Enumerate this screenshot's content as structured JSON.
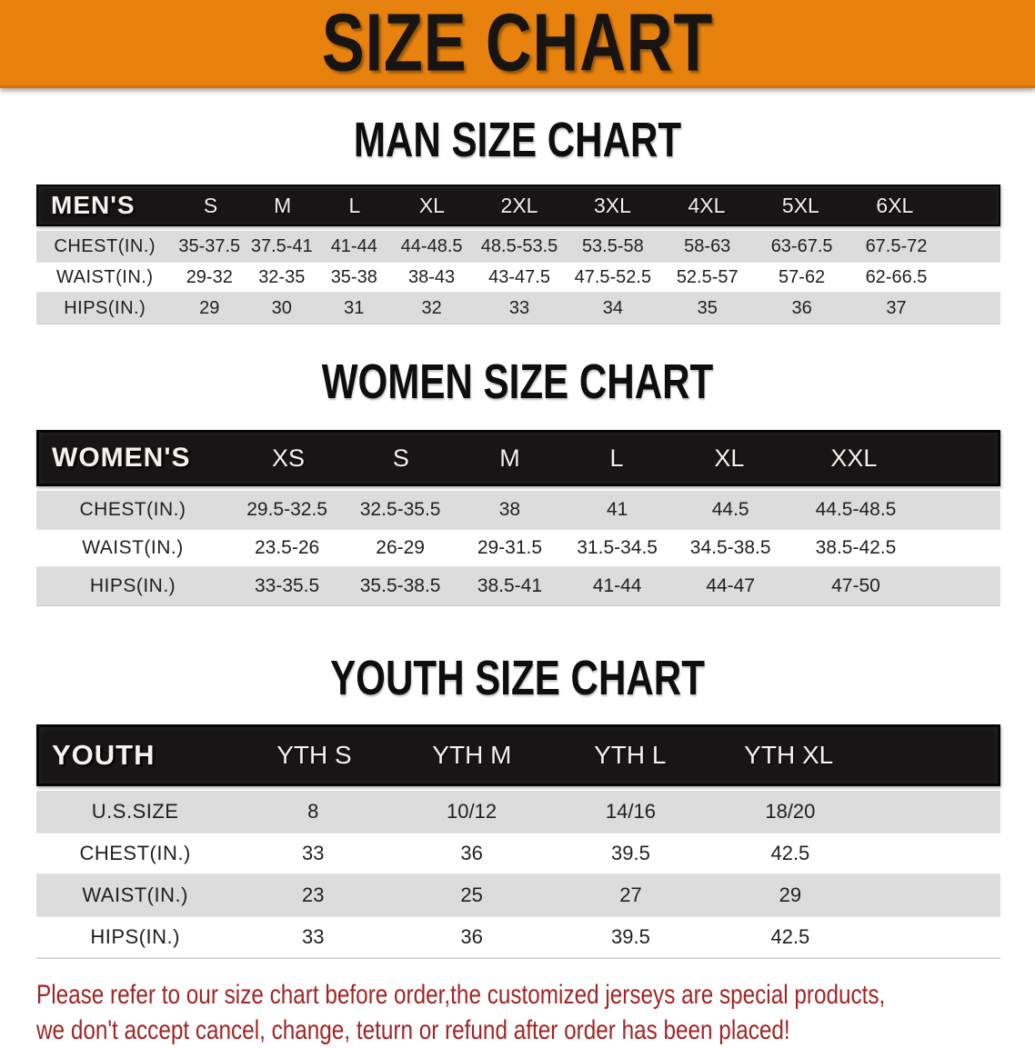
{
  "banner": {
    "title": "SIZE CHART"
  },
  "sections": {
    "men": {
      "heading": "MAN SIZE CHART",
      "table": {
        "label": "MEN'S",
        "columns": [
          "S",
          "M",
          "L",
          "XL",
          "2XL",
          "3XL",
          "4XL",
          "5XL",
          "6XL"
        ],
        "rows": [
          {
            "label": "CHEST(IN.)",
            "values": [
              "35-37.5",
              "37.5-41",
              "41-44",
              "44-48.5",
              "48.5-53.5",
              "53.5-58",
              "58-63",
              "63-67.5",
              "67.5-72"
            ]
          },
          {
            "label": "WAIST(IN.)",
            "values": [
              "29-32",
              "32-35",
              "35-38",
              "38-43",
              "43-47.5",
              "47.5-52.5",
              "52.5-57",
              "57-62",
              "62-66.5"
            ]
          },
          {
            "label": "HIPS(IN.)",
            "values": [
              "29",
              "30",
              "31",
              "32",
              "33",
              "34",
              "35",
              "36",
              "37"
            ]
          }
        ]
      }
    },
    "women": {
      "heading": "WOMEN SIZE CHART",
      "table": {
        "label": "WOMEN'S",
        "columns": [
          "XS",
          "S",
          "M",
          "L",
          "XL",
          "XXL"
        ],
        "rows": [
          {
            "label": "CHEST(IN.)",
            "values": [
              "29.5-32.5",
              "32.5-35.5",
              "38",
              "41",
              "44.5",
              "44.5-48.5"
            ]
          },
          {
            "label": "WAIST(IN.)",
            "values": [
              "23.5-26",
              "26-29",
              "29-31.5",
              "31.5-34.5",
              "34.5-38.5",
              "38.5-42.5"
            ]
          },
          {
            "label": "HIPS(IN.)",
            "values": [
              "33-35.5",
              "35.5-38.5",
              "38.5-41",
              "41-44",
              "44-47",
              "47-50"
            ]
          }
        ]
      }
    },
    "youth": {
      "heading": "YOUTH SIZE CHART",
      "table": {
        "label": "YOUTH",
        "columns": [
          "YTH S",
          "YTH M",
          "YTH L",
          "YTH XL"
        ],
        "rows": [
          {
            "label": "U.S.SIZE",
            "values": [
              "8",
              "10/12",
              "14/16",
              "18/20"
            ]
          },
          {
            "label": "CHEST(IN.)",
            "values": [
              "33",
              "36",
              "39.5",
              "42.5"
            ]
          },
          {
            "label": "WAIST(IN.)",
            "values": [
              "23",
              "25",
              "27",
              "29"
            ]
          },
          {
            "label": "HIPS(IN.)",
            "values": [
              "33",
              "36",
              "39.5",
              "42.5"
            ]
          }
        ]
      }
    }
  },
  "disclaimer": {
    "line1": "Please refer to our size chart before order,the customized jerseys are special products,",
    "line2": "we don't accept cancel, change, teturn or refund after order has been placed!"
  },
  "colors": {
    "banner_bg": "#e8820e",
    "table_header_bg": "#171515",
    "row_alt_bg": "#dcdcdc",
    "disclaimer_text": "#a32424"
  }
}
